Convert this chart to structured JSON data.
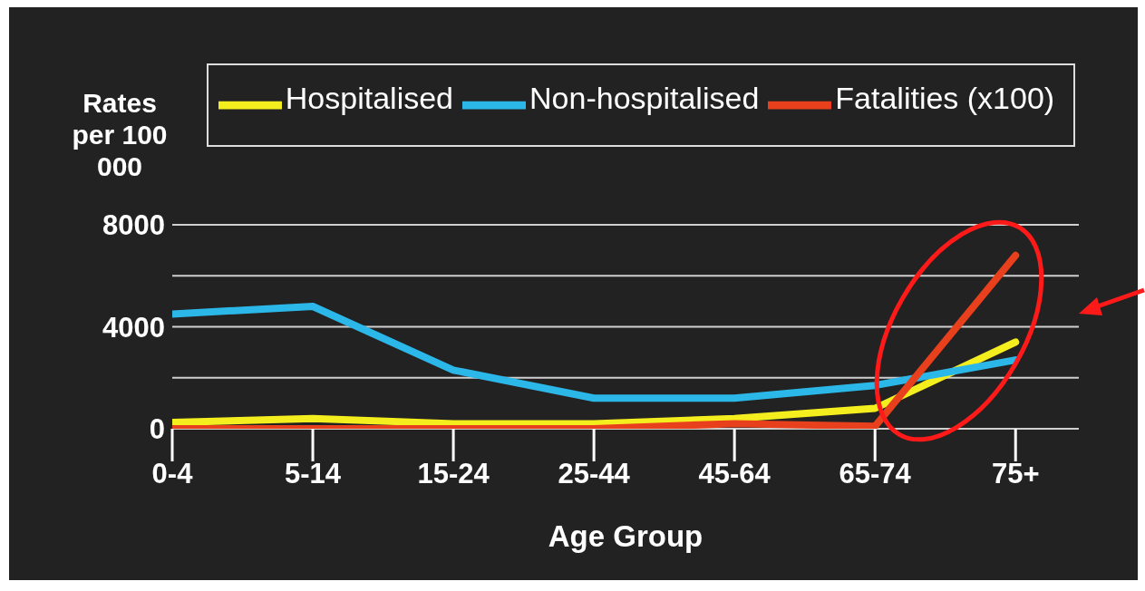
{
  "chart_data": {
    "type": "line",
    "xlabel": "Age Group",
    "ylabel": "Rates per 100 000",
    "categories": [
      "0-4",
      "5-14",
      "15-24",
      "25-44",
      "45-64",
      "65-74",
      "75+"
    ],
    "series": [
      {
        "name": "Hospitalised",
        "color": "#f5ee1e",
        "values": [
          250,
          400,
          200,
          200,
          400,
          800,
          3400
        ]
      },
      {
        "name": "Non-hospitalised",
        "color": "#2bb8e8",
        "values": [
          4500,
          4800,
          2300,
          1200,
          1200,
          1700,
          2700
        ]
      },
      {
        "name": "Fatalities (x100)",
        "color": "#e8401c",
        "values": [
          0,
          0,
          0,
          0,
          200,
          100,
          6800
        ]
      }
    ],
    "ylim": [
      0,
      8000
    ],
    "yticks": [
      0,
      {
        "value": 2000,
        "label": null
      },
      4000,
      {
        "value": 6000,
        "label": null
      },
      8000
    ],
    "grid": "y",
    "legend": "top",
    "line_style": "solid"
  }
}
